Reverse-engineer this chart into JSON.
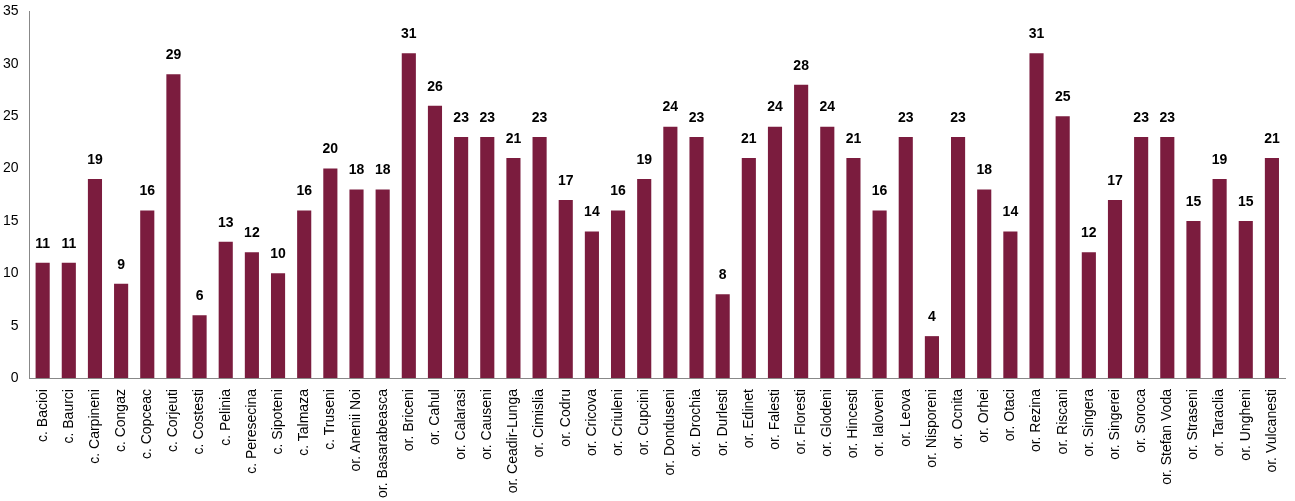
{
  "chart_data": {
    "type": "bar",
    "categories": [
      "c. Bacioi",
      "c. Baurci",
      "c. Carpineni",
      "c. Congaz",
      "c. Copceac",
      "c. Corjeuti",
      "c. Costesti",
      "c. Pelinia",
      "c. Peresecina",
      "c. Sipoteni",
      "c. Talmaza",
      "c. Truseni",
      "or. Anenii Noi",
      "or. Basarabeasca",
      "or. Briceni",
      "or. Cahul",
      "or. Calarasi",
      "or. Causeni",
      "or. Ceadir-Lunga",
      "or. Cimislia",
      "or. Codru",
      "or. Cricova",
      "or. Criuleni",
      "or. Cupcini",
      "or. Donduseni",
      "or. Drochia",
      "or. Durlesti",
      "or. Edinet",
      "or. Falesti",
      "or. Floresti",
      "or. Glodeni",
      "or. Hincesti",
      "or. Ialoveni",
      "or. Leova",
      "or. Nisporeni",
      "or. Ocnita",
      "or. Orhei",
      "or. Otaci",
      "or. Rezina",
      "or. Riscani",
      "or. Singera",
      "or. Singerei",
      "or. Soroca",
      "or. Stefan Voda",
      "or. Straseni",
      "or. Taraclia",
      "or. Ungheni",
      "or. Vulcanesti"
    ],
    "values": [
      11,
      11,
      19,
      9,
      16,
      29,
      6,
      13,
      12,
      10,
      16,
      20,
      18,
      18,
      31,
      26,
      23,
      23,
      21,
      23,
      17,
      14,
      16,
      19,
      24,
      23,
      8,
      21,
      24,
      28,
      24,
      21,
      16,
      23,
      4,
      23,
      18,
      14,
      31,
      25,
      12,
      17,
      23,
      23,
      15,
      19,
      15,
      21
    ],
    "color": "#7b1c3e",
    "ylim": [
      0,
      35
    ],
    "yticks": [
      0,
      5,
      10,
      15,
      20,
      25,
      30,
      35
    ],
    "grid": false,
    "data_labels": true
  }
}
